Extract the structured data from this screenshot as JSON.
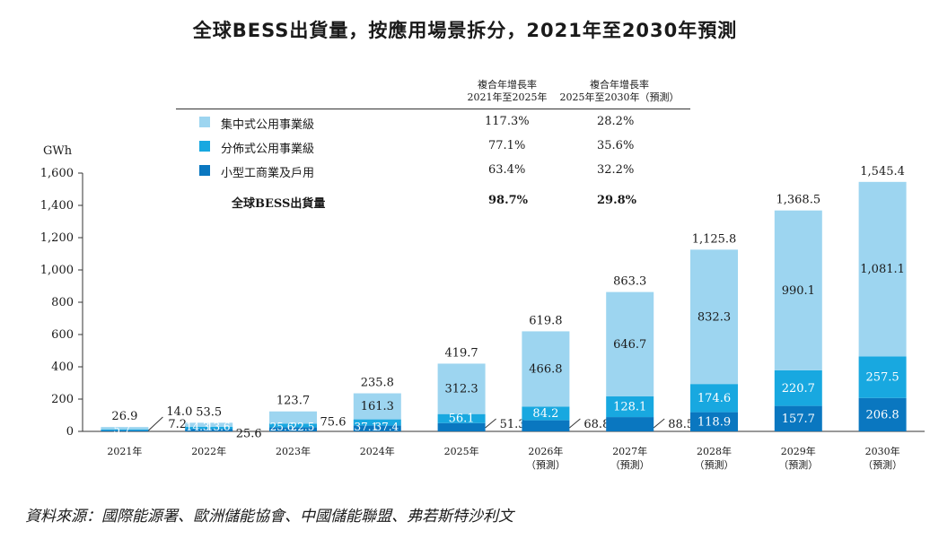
{
  "title": "全球BESS出貨量，按應用場景拆分，2021年至2030年預測",
  "source": "資料來源：國際能源署、歐洲儲能協會、中國儲能聯盟、弗若斯特沙利文",
  "cagr_table": {
    "header1_line1": "複合年增長率",
    "header1_line2": "2021年至2025年",
    "header2_line1": "複合年增長率",
    "header2_line2": "2025年至2030年（預測）",
    "rows": [
      {
        "label": "集中式公用事業級",
        "c1": "117.3%",
        "c2": "28.2%",
        "color": "#9dd5f0"
      },
      {
        "label": "分佈式公用事業級",
        "c1": "77.1%",
        "c2": "35.6%",
        "color": "#18a8e0"
      },
      {
        "label": "小型工商業及戶用",
        "c1": "63.4%",
        "c2": "32.2%",
        "color": "#0a77c0"
      }
    ],
    "total": {
      "label": "全球BESS出貨量",
      "c1": "98.7%",
      "c2": "29.8%"
    }
  },
  "chart_data": {
    "type": "bar",
    "stacked": true,
    "ylabel": "GWh",
    "ylim": [
      0,
      1600
    ],
    "yticks": [
      0,
      200,
      400,
      600,
      800,
      1000,
      1200,
      1400,
      1600
    ],
    "ytick_labels": [
      "0",
      "200",
      "400",
      "600",
      "800",
      "1,000",
      "1,200",
      "1,400",
      "1,600"
    ],
    "categories": [
      {
        "line1": "2021年",
        "line2": ""
      },
      {
        "line1": "2022年",
        "line2": ""
      },
      {
        "line1": "2023年",
        "line2": ""
      },
      {
        "line1": "2024年",
        "line2": ""
      },
      {
        "line1": "2025年",
        "line2": ""
      },
      {
        "line1": "2026年",
        "line2": "（預測）"
      },
      {
        "line1": "2027年",
        "line2": "（預測）"
      },
      {
        "line1": "2028年",
        "line2": "（預測）"
      },
      {
        "line1": "2029年",
        "line2": "（預測）"
      },
      {
        "line1": "2030年",
        "line2": "（預測）"
      }
    ],
    "series": [
      {
        "name": "小型工商業及戶用",
        "color": "#0a77c0",
        "values": [
          7.2,
          14.3,
          25.6,
          37.1,
          51.3,
          68.8,
          88.5,
          118.9,
          157.7,
          206.8
        ],
        "labels": [
          "7.2",
          "14.3",
          "25.6",
          "37.1",
          "51.3",
          "68.8",
          "88.5",
          "118.9",
          "157.7",
          "206.8"
        ]
      },
      {
        "name": "分佈式公用事業級",
        "color": "#18a8e0",
        "values": [
          5.7,
          13.6,
          22.5,
          37.4,
          56.1,
          84.2,
          128.1,
          174.6,
          220.7,
          257.5
        ],
        "labels": [
          "5.7",
          "13.6",
          "22.5",
          "37.4",
          "56.1",
          "84.2",
          "128.1",
          "174.6",
          "220.7",
          "257.5"
        ]
      },
      {
        "name": "集中式公用事業級",
        "color": "#9dd5f0",
        "values": [
          14.0,
          25.6,
          75.6,
          161.3,
          312.3,
          466.8,
          646.7,
          832.3,
          990.1,
          1081.1
        ],
        "labels": [
          "14.0",
          "25.6",
          "75.6",
          "161.3",
          "312.3",
          "466.8",
          "646.7",
          "832.3",
          "990.1",
          "1,081.1"
        ]
      }
    ],
    "totals": [
      26.9,
      53.5,
      123.7,
      235.8,
      419.7,
      619.8,
      863.3,
      1125.8,
      1368.5,
      1545.4
    ],
    "total_labels": [
      "26.9",
      "53.5",
      "123.7",
      "235.8",
      "419.7",
      "619.8",
      "863.3",
      "1,125.8",
      "1,368.5",
      "1,545.4"
    ]
  }
}
